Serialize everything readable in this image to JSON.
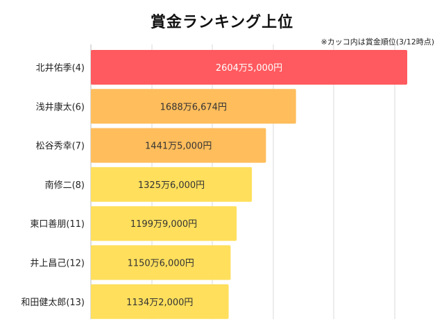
{
  "chart_data": {
    "type": "bar",
    "orientation": "horizontal",
    "title": "賞金ランキング上位",
    "note": "※カッコ内は賞金順位(3/12時点)",
    "unit": "円",
    "categories": [
      "北井佑季(4)",
      "浅井康太(6)",
      "松谷秀幸(7)",
      "南修二(8)",
      "東口善朋(11)",
      "井上昌己(12)",
      "和田健太郎(13)"
    ],
    "values": [
      26045000,
      16886674,
      14415000,
      13256000,
      11999000,
      11506000,
      11342000
    ],
    "value_labels": [
      "2604万5,000円",
      "1688万6,674円",
      "1441万5,000円",
      "1325万6,000円",
      "1199万9,000円",
      "1150万6,000円",
      "1134万2,000円"
    ],
    "bar_colors": [
      "#ff5a5f",
      "#ffbd5c",
      "#ffbd5c",
      "#ffdf5c",
      "#ffdf5c",
      "#ffdf5c",
      "#ffdf5c"
    ],
    "label_colors": [
      "#ffffff",
      "#333333",
      "#333333",
      "#333333",
      "#333333",
      "#333333",
      "#333333"
    ],
    "grid": true,
    "xlim": [
      0,
      26045000
    ]
  }
}
